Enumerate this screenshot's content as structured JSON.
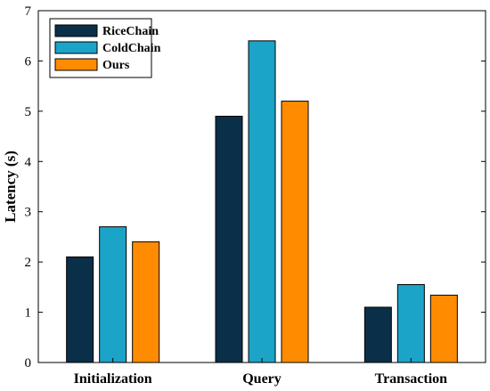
{
  "chart_data": {
    "type": "bar",
    "categories": [
      "Initialization",
      "Query",
      "Transaction"
    ],
    "series": [
      {
        "name": "RiceChain",
        "values": [
          2.1,
          4.9,
          1.1
        ],
        "color": "#0a2f49"
      },
      {
        "name": "ColdChain",
        "values": [
          2.7,
          6.4,
          1.55
        ],
        "color": "#1ca3c8"
      },
      {
        "name": "Ours",
        "values": [
          2.4,
          5.2,
          1.34
        ],
        "color": "#ff8c00"
      }
    ],
    "ylabel": "Latency (s)",
    "xlabel": "",
    "ylim": [
      0,
      7
    ],
    "yticks": [
      0,
      1,
      2,
      3,
      4,
      5,
      6,
      7
    ],
    "legend": "top-left",
    "grid": false
  }
}
